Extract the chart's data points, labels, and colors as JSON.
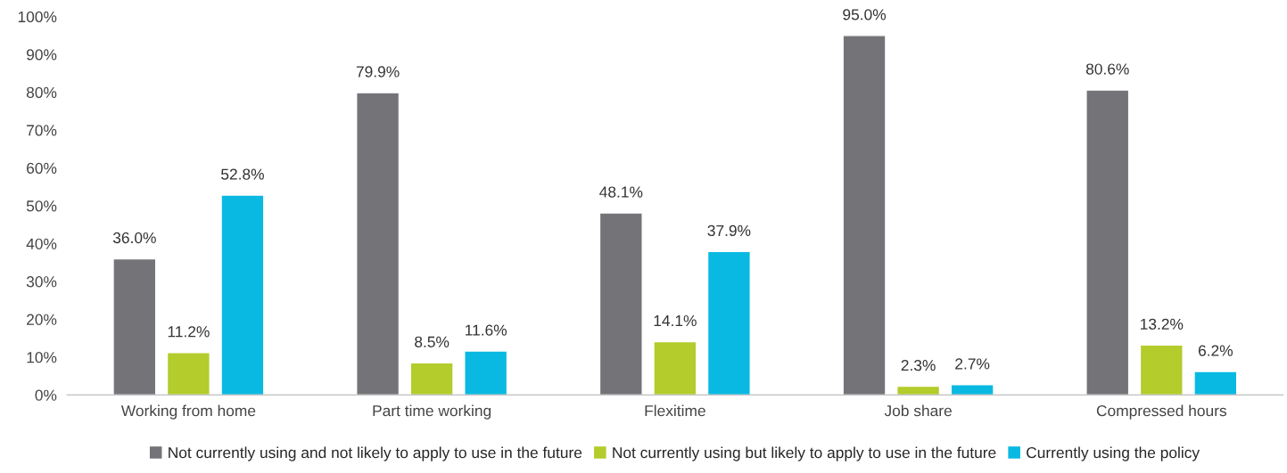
{
  "chart_data": {
    "type": "bar",
    "categories": [
      "Working from home",
      "Part time working",
      "Flexitime",
      "Job share",
      "Compressed hours"
    ],
    "series": [
      {
        "name": "Not currently using and not likely to apply to use in the future",
        "color": "#747378",
        "values": [
          36.0,
          79.9,
          48.1,
          95.0,
          80.6
        ],
        "value_labels": [
          "36.0%",
          "79.9%",
          "48.1%",
          "95.0%",
          "80.6%"
        ]
      },
      {
        "name": "Not currently using but likely to apply to use in the future",
        "color": "#b4cc2c",
        "values": [
          11.2,
          8.5,
          14.1,
          2.3,
          13.2
        ],
        "value_labels": [
          "11.2%",
          "8.5%",
          "14.1%",
          "2.3%",
          "13.2%"
        ]
      },
      {
        "name": "Currently using the policy",
        "color": "#09b9e1",
        "values": [
          52.8,
          11.6,
          37.9,
          2.7,
          6.2
        ],
        "value_labels": [
          "52.8%",
          "11.6%",
          "37.9%",
          "2.7%",
          "6.2%"
        ]
      }
    ],
    "ylim": [
      0,
      100
    ],
    "yticks": [
      {
        "value": 0,
        "label": "0%"
      },
      {
        "value": 10,
        "label": "10%"
      },
      {
        "value": 20,
        "label": "20%"
      },
      {
        "value": 30,
        "label": "30%"
      },
      {
        "value": 40,
        "label": "40%"
      },
      {
        "value": 50,
        "label": "50%"
      },
      {
        "value": 60,
        "label": "60%"
      },
      {
        "value": 70,
        "label": "70%"
      },
      {
        "value": 80,
        "label": "80%"
      },
      {
        "value": 90,
        "label": "90%"
      },
      {
        "value": 100,
        "label": "100%"
      }
    ],
    "grid": false,
    "legend": "bottom"
  }
}
